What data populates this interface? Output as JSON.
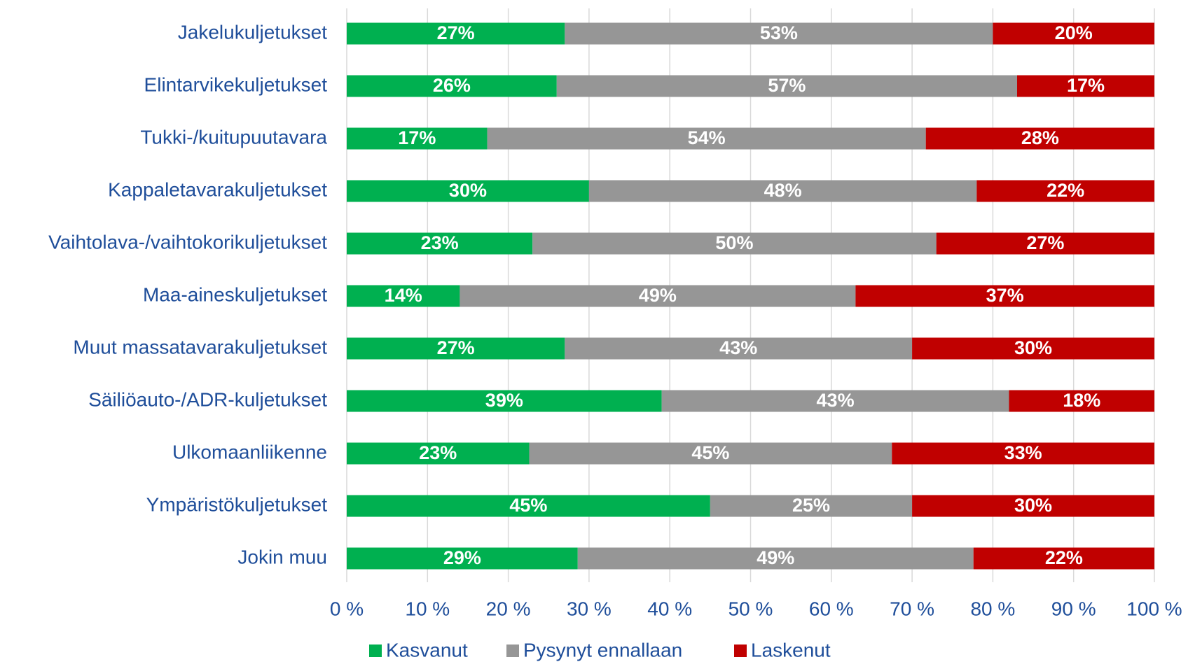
{
  "chart_data": {
    "type": "stacked-bar-horizontal",
    "categories": [
      "Jakelukuljetukset",
      "Elintarvikekuljetukset",
      "Tukki-/kuitupuutavara",
      "Kappaletavarakuljetukset",
      "Vaihtolava-/vaihtokorikuljetukset",
      "Maa-aineskuljetukset",
      "Muut massatavarakuljetukset",
      "Säiliöauto-/ADR-kuljetukset",
      "Ulkomaanliikenne",
      "Ympäristökuljetukset",
      "Jokin muu"
    ],
    "series": [
      {
        "name": "Kasvanut",
        "color": "#00b050",
        "values": [
          27,
          26,
          17.4,
          30,
          23,
          14,
          27,
          39,
          22.6,
          45,
          28.6
        ],
        "value_labels": [
          "27%",
          "26%",
          "17%",
          "30%",
          "23%",
          "14%",
          "27%",
          "39%",
          "23%",
          "45%",
          "29%"
        ]
      },
      {
        "name": "Pysynyt ennallaan",
        "color": "#969696",
        "values": [
          53,
          57,
          54.3,
          48,
          50,
          49,
          43,
          43,
          44.9,
          25,
          49
        ],
        "value_labels": [
          "53%",
          "57%",
          "54%",
          "48%",
          "50%",
          "49%",
          "43%",
          "43%",
          "45%",
          "25%",
          "49%"
        ]
      },
      {
        "name": "Laskenut",
        "color": "#c00000",
        "values": [
          20,
          17,
          28.3,
          22,
          27,
          37,
          30,
          18,
          32.5,
          30,
          22.4
        ],
        "value_labels": [
          "20%",
          "17%",
          "28%",
          "22%",
          "27%",
          "37%",
          "30%",
          "18%",
          "33%",
          "30%",
          "22%"
        ]
      }
    ],
    "xlim": [
      0,
      100
    ],
    "xticks": [
      {
        "value": 0,
        "label": "0 %"
      },
      {
        "value": 10,
        "label": "10 %"
      },
      {
        "value": 20,
        "label": "20 %"
      },
      {
        "value": 30,
        "label": "30 %"
      },
      {
        "value": 40,
        "label": "40 %"
      },
      {
        "value": 50,
        "label": "50 %"
      },
      {
        "value": 60,
        "label": "60 %"
      },
      {
        "value": 70,
        "label": "70 %"
      },
      {
        "value": 80,
        "label": "80 %"
      },
      {
        "value": 90,
        "label": "90 %"
      },
      {
        "value": 100,
        "label": "100 %"
      }
    ],
    "grid": true,
    "legend": "bottom"
  }
}
